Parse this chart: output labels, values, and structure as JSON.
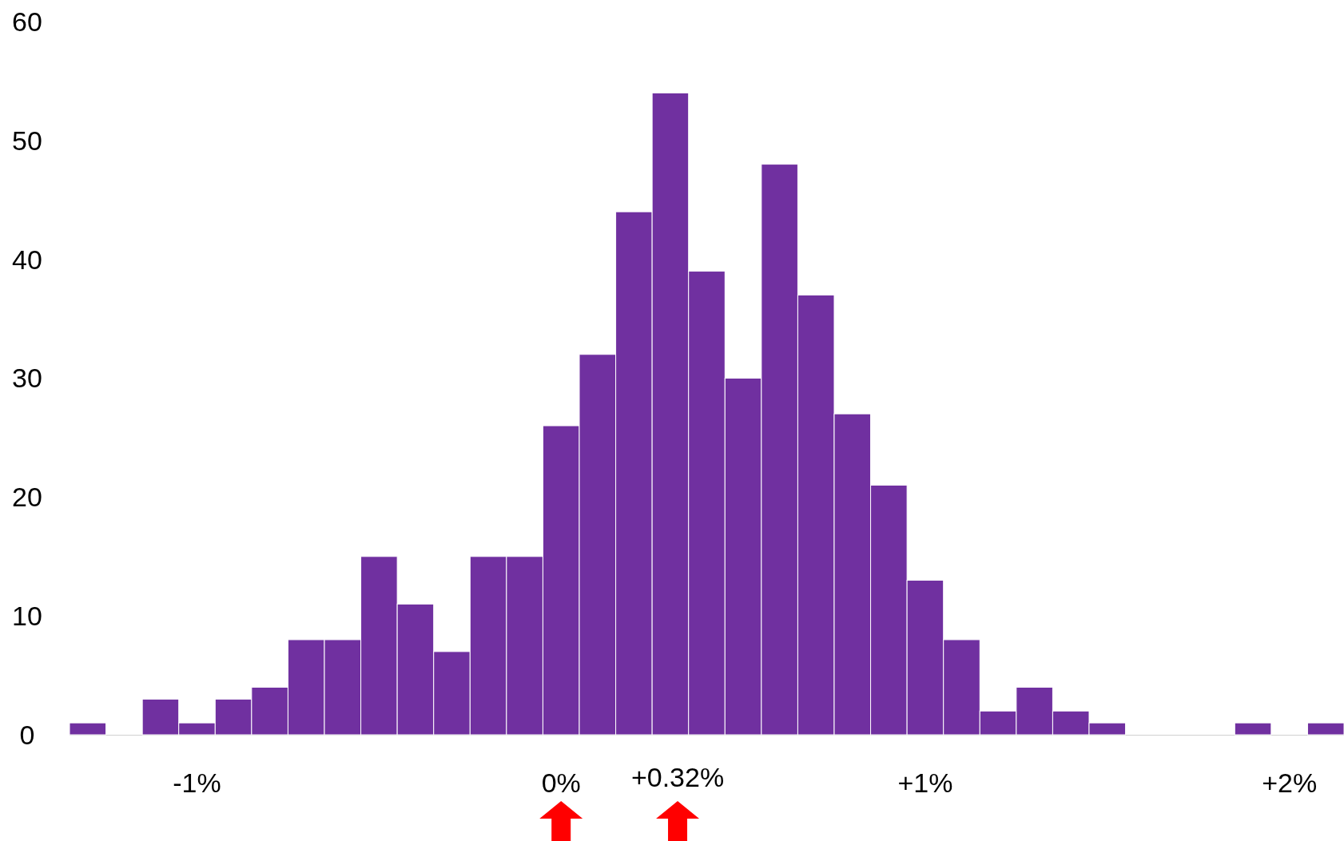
{
  "chart_data": {
    "type": "histogram",
    "color": "#7030a0",
    "bins": [
      -1.35,
      -1.25,
      -1.15,
      -1.05,
      -0.95,
      -0.85,
      -0.75,
      -0.65,
      -0.55,
      -0.45,
      -0.35,
      -0.25,
      -0.15,
      -0.05,
      0.05,
      0.15,
      0.25,
      0.35,
      0.45,
      0.55,
      0.65,
      0.75,
      0.85,
      0.95,
      1.05,
      1.15,
      1.25,
      1.35,
      1.45,
      1.55,
      1.65,
      1.75,
      1.85,
      1.95,
      2.05,
      2.15
    ],
    "values": [
      1,
      0,
      3,
      1,
      3,
      4,
      8,
      8,
      15,
      11,
      7,
      15,
      15,
      26,
      32,
      44,
      54,
      39,
      30,
      48,
      37,
      27,
      21,
      13,
      8,
      2,
      4,
      2,
      1,
      0,
      0,
      0,
      1,
      0,
      1
    ],
    "xlim": [
      -1.35,
      2.15
    ],
    "xticks": [
      {
        "value": -1,
        "label": "-1%"
      },
      {
        "value": 0,
        "label": "0%"
      },
      {
        "value": 0.32,
        "label": "+0.32%"
      },
      {
        "value": 1,
        "label": "+1%"
      },
      {
        "value": 2,
        "label": "+2%"
      }
    ],
    "ylim": [
      0,
      60
    ],
    "yticks": [
      0,
      10,
      20,
      30,
      40,
      50,
      60
    ],
    "grid": false
  }
}
